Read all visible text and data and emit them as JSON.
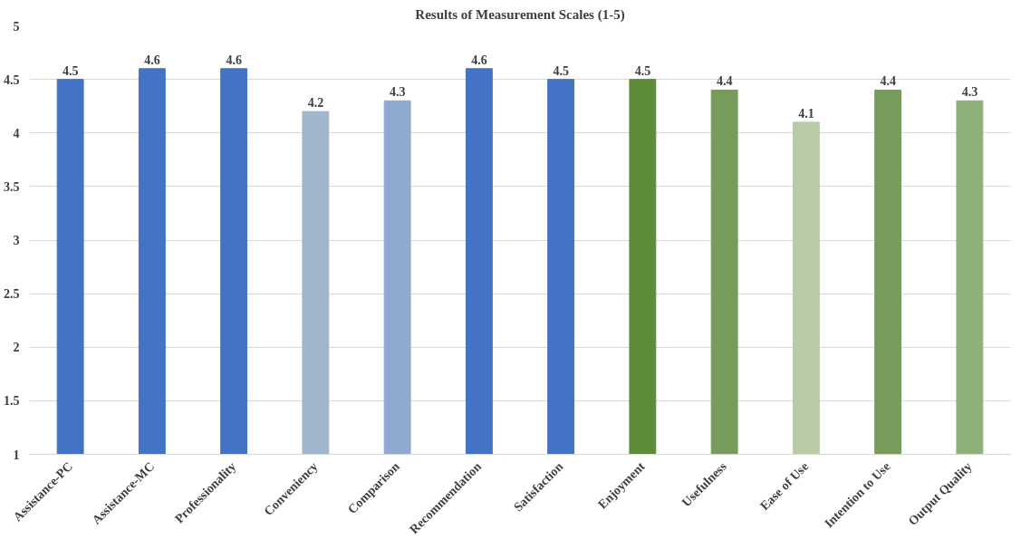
{
  "chart_data": {
    "type": "bar",
    "title": "Results of Measurement Scales (1-5)",
    "categories": [
      "Assistance-PC",
      "Assistance-MC",
      "Professionality",
      "Conveniency",
      "Comparison",
      "Recommendation",
      "Satisfaction",
      "Enjoyment",
      "Usefulness",
      "Ease of Use",
      "Intention to Use",
      "Output Quality"
    ],
    "values": [
      4.5,
      4.6,
      4.6,
      4.2,
      4.3,
      4.6,
      4.5,
      4.5,
      4.4,
      4.1,
      4.4,
      4.3
    ],
    "colors": [
      "#4472c4",
      "#4472c4",
      "#4472c4",
      "#a1b6cc",
      "#8faad0",
      "#4472c4",
      "#4472c4",
      "#5e8c3a",
      "#779b5b",
      "#b7cba6",
      "#779b5b",
      "#90b07a"
    ],
    "ylim": [
      1,
      5
    ],
    "yticks": [
      1,
      1.5,
      2,
      2.5,
      3,
      3.5,
      4,
      4.5,
      5
    ],
    "grid": "y",
    "data_labels": true
  }
}
